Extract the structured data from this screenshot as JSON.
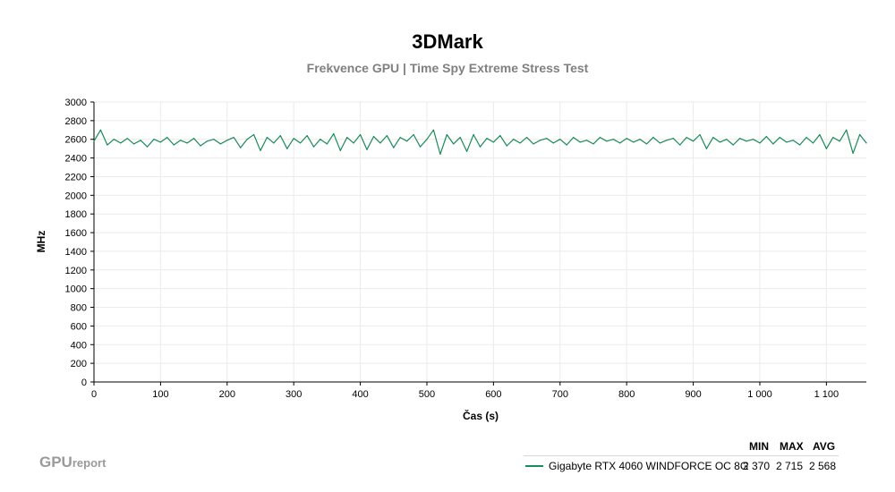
{
  "chart_data": {
    "type": "line",
    "title": "3DMark",
    "subtitle": "Frekvence GPU | Time Spy Extreme Stress Test",
    "xlabel": "Čas (s)",
    "ylabel": "MHz",
    "xlim": [
      0,
      1160
    ],
    "ylim": [
      0,
      3000
    ],
    "x_ticks": [
      0,
      100,
      200,
      300,
      400,
      500,
      600,
      700,
      800,
      900,
      1000,
      1100
    ],
    "x_tick_labels": [
      "0",
      "100",
      "200",
      "300",
      "400",
      "500",
      "600",
      "700",
      "800",
      "900",
      "1 000",
      "1 100"
    ],
    "y_ticks": [
      0,
      200,
      400,
      600,
      800,
      1000,
      1200,
      1400,
      1600,
      1800,
      2000,
      2200,
      2400,
      2600,
      2800,
      3000
    ],
    "grid": true,
    "series": [
      {
        "name": "Gigabyte RTX 4060 WINDFORCE OC 8G",
        "color": "#1a8a5a",
        "x": [
          0,
          10,
          20,
          30,
          40,
          50,
          60,
          70,
          80,
          90,
          100,
          110,
          120,
          130,
          140,
          150,
          160,
          170,
          180,
          190,
          200,
          210,
          220,
          230,
          240,
          250,
          260,
          270,
          280,
          290,
          300,
          310,
          320,
          330,
          340,
          350,
          360,
          370,
          380,
          390,
          400,
          410,
          420,
          430,
          440,
          450,
          460,
          470,
          480,
          490,
          500,
          510,
          520,
          530,
          540,
          550,
          560,
          570,
          580,
          590,
          600,
          610,
          620,
          630,
          640,
          650,
          660,
          670,
          680,
          690,
          700,
          710,
          720,
          730,
          740,
          750,
          760,
          770,
          780,
          790,
          800,
          810,
          820,
          830,
          840,
          850,
          860,
          870,
          880,
          890,
          900,
          910,
          920,
          930,
          940,
          950,
          960,
          970,
          980,
          990,
          1000,
          1010,
          1020,
          1030,
          1040,
          1050,
          1060,
          1070,
          1080,
          1090,
          1100,
          1110,
          1120,
          1130,
          1140,
          1150,
          1160
        ],
        "values": [
          2580,
          2700,
          2540,
          2600,
          2560,
          2610,
          2550,
          2590,
          2520,
          2600,
          2570,
          2620,
          2540,
          2590,
          2560,
          2610,
          2530,
          2580,
          2600,
          2550,
          2590,
          2620,
          2510,
          2600,
          2650,
          2480,
          2620,
          2560,
          2640,
          2500,
          2610,
          2560,
          2640,
          2520,
          2600,
          2550,
          2660,
          2480,
          2620,
          2560,
          2650,
          2490,
          2630,
          2560,
          2640,
          2510,
          2620,
          2580,
          2650,
          2520,
          2600,
          2700,
          2440,
          2650,
          2550,
          2620,
          2470,
          2650,
          2520,
          2610,
          2570,
          2640,
          2530,
          2600,
          2560,
          2620,
          2550,
          2590,
          2610,
          2560,
          2600,
          2540,
          2620,
          2570,
          2590,
          2550,
          2620,
          2580,
          2600,
          2560,
          2610,
          2570,
          2600,
          2550,
          2620,
          2560,
          2590,
          2610,
          2540,
          2620,
          2580,
          2650,
          2500,
          2620,
          2570,
          2600,
          2540,
          2610,
          2580,
          2600,
          2560,
          2630,
          2550,
          2620,
          2570,
          2590,
          2540,
          2620,
          2560,
          2650,
          2500,
          2620,
          2580,
          2700,
          2450,
          2650,
          2560
        ]
      }
    ],
    "legend": {
      "placement": "bottom-right",
      "columns": [
        "MIN",
        "MAX",
        "AVG"
      ],
      "rows": [
        {
          "name": "Gigabyte RTX 4060 WINDFORCE OC 8G",
          "min": "2 370",
          "max": "2 715",
          "avg": "2 568"
        }
      ]
    }
  },
  "branding": {
    "main": "GPU",
    "sub": "report"
  }
}
